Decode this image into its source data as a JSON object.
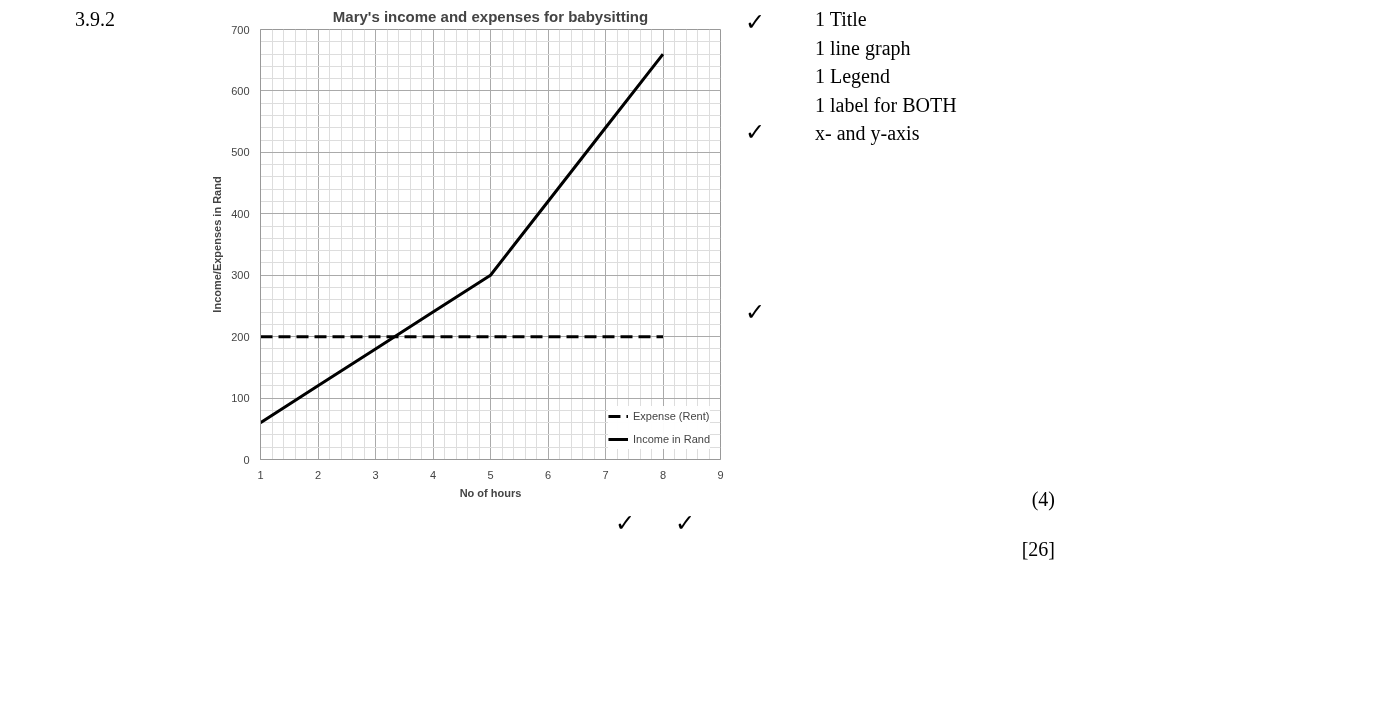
{
  "chart_data": {
    "type": "line",
    "title": "Mary's income and expenses for babysitting",
    "xlabel": "No of hours",
    "ylabel": "Income/Expenses in Rand",
    "x": [
      1,
      2,
      3,
      4,
      5,
      6,
      7,
      8
    ],
    "series": [
      {
        "name": "Expense (Rent)",
        "color": "#000000",
        "line_style": "dashed",
        "values": [
          200,
          200,
          200,
          200,
          200,
          200,
          200,
          200
        ]
      },
      {
        "name": "Income in Rand",
        "color": "#000000",
        "line_style": "solid",
        "values": [
          60,
          120,
          180,
          240,
          300,
          420,
          540,
          660
        ]
      }
    ],
    "xlim": [
      1,
      9
    ],
    "xticks": [
      1,
      2,
      3,
      4,
      5,
      6,
      7,
      8,
      9
    ],
    "ylim": [
      0,
      700
    ],
    "yticks": [
      0,
      100,
      200,
      300,
      400,
      500,
      600,
      700
    ],
    "grid": true,
    "legend": "bottom right",
    "marker": "none",
    "annotations": [
      "3.9.2",
      "1 Title\n1 line graph\n1 Legend\n1 label for BOTH\nx- and y-axis",
      "(4)",
      "[26]",
      "✓",
      "✓",
      "✓",
      "✓",
      "✓"
    ]
  }
}
